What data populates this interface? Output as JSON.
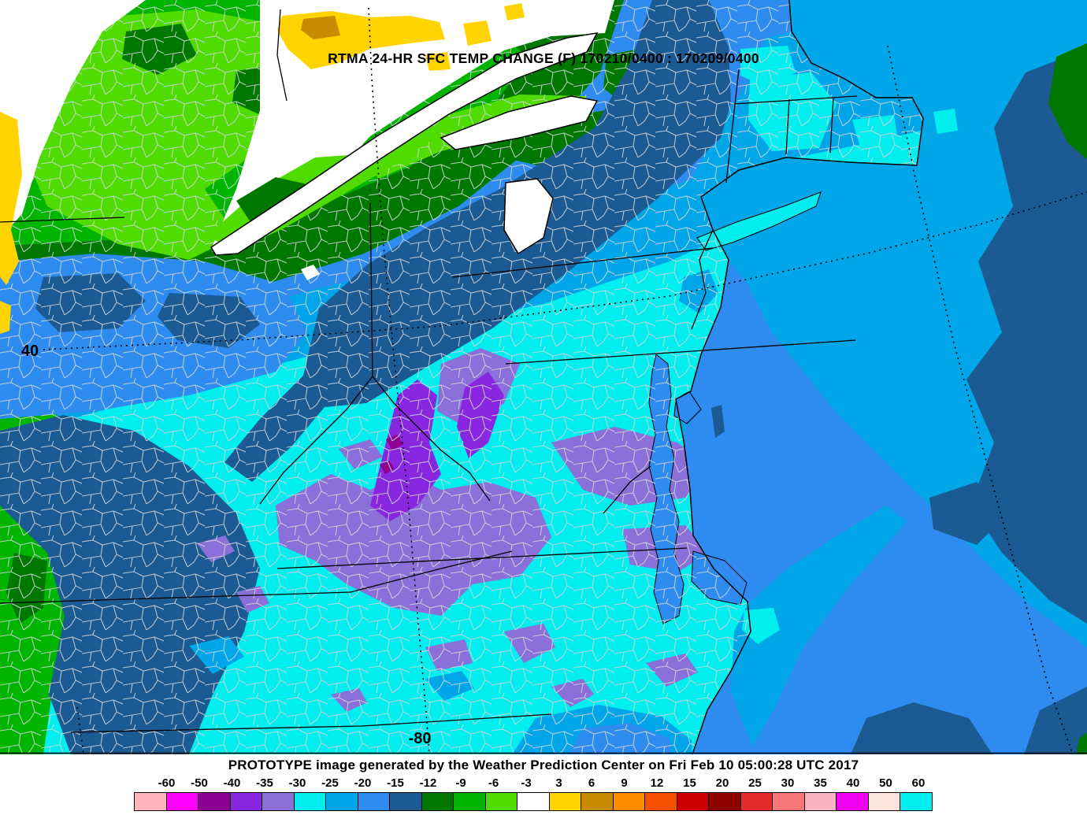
{
  "title": "RTMA 24-HR SFC TEMP CHANGE (F) 170210/0400 : 170209/0400",
  "map": {
    "lat_label": "40",
    "lon_label": "-80"
  },
  "footer": {
    "text": "PROTOTYPE image generated by the Weather Prediction Center on Fri Feb 10 05:00:28 UTC 2017"
  },
  "legend": {
    "tick_labels": [
      "-60",
      "-50",
      "-40",
      "-35",
      "-30",
      "-25",
      "-20",
      "-15",
      "-12",
      "-9",
      "-6",
      "-3",
      "3",
      "6",
      "9",
      "12",
      "15",
      "20",
      "25",
      "30",
      "35",
      "40",
      "50",
      "60"
    ],
    "box_colors": [
      "#FFB4BE",
      "#FF00FF",
      "#8B0090",
      "#8826E0",
      "#8A70D8",
      "#00EEEE",
      "#00A6E8",
      "#2E8CF0",
      "#1C5A94",
      "#007800",
      "#00B400",
      "#50DC00",
      "#FFFFFF",
      "#FFD400",
      "#C88A00",
      "#FF8C00",
      "#F45000",
      "#CC0000",
      "#8B0000",
      "#E32B2B",
      "#F87878",
      "#F8B4C4",
      "#F000F0",
      "#FBE4DC",
      "#00EEEE"
    ]
  }
}
